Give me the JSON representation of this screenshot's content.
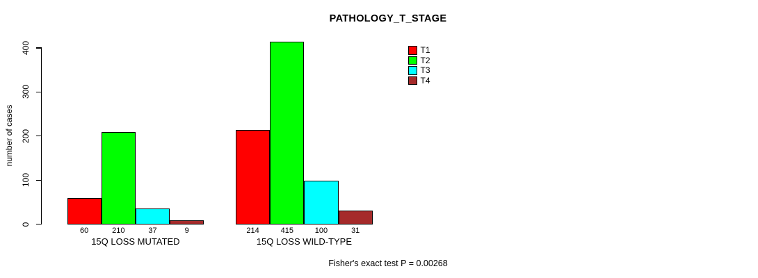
{
  "title": "PATHOLOGY_T_STAGE",
  "footer": "Fisher's exact test P = 0.00268",
  "chart_data": {
    "type": "bar",
    "title": "PATHOLOGY_T_STAGE",
    "xlabel": "",
    "ylabel": "number of cases",
    "ylim": [
      0,
      400
    ],
    "yticks": [
      "0",
      "100",
      "200",
      "300",
      "400"
    ],
    "grid": false,
    "legend_position": "top-right",
    "categories": [
      "15Q LOSS MUTATED",
      "15Q LOSS WILD-TYPE"
    ],
    "series": [
      {
        "name": "T1",
        "color": "#FF0000",
        "values": [
          60,
          214
        ]
      },
      {
        "name": "T2",
        "color": "#00FF00",
        "values": [
          210,
          415
        ]
      },
      {
        "name": "T3",
        "color": "#00FFFF",
        "values": [
          37,
          100
        ]
      },
      {
        "name": "T4",
        "color": "#A52A2A",
        "values": [
          9,
          31
        ]
      }
    ],
    "bar_value_labels": [
      [
        "60",
        "210",
        "37",
        "9"
      ],
      [
        "214",
        "415",
        "100",
        "31"
      ]
    ],
    "annotation": "Fisher's exact test P = 0.00268"
  }
}
